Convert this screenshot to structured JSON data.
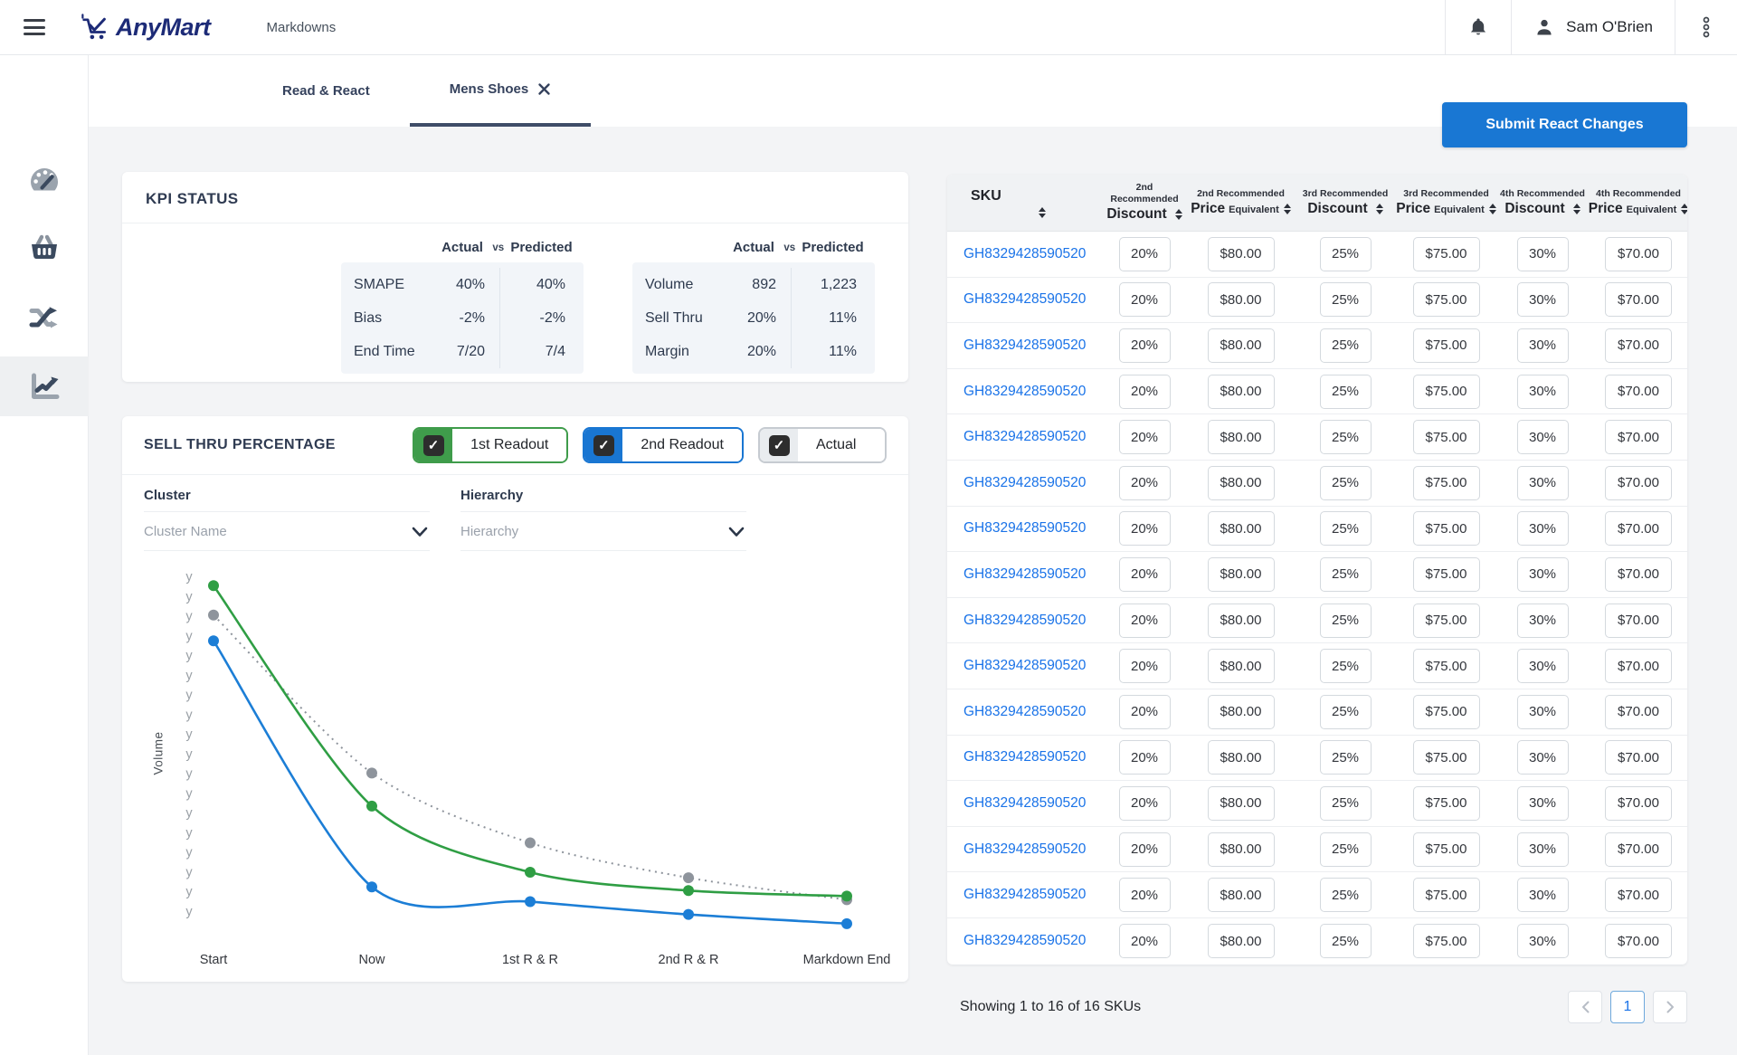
{
  "topbar": {
    "brand": "AnyMart",
    "page_title": "Markdowns",
    "user_name": "Sam O'Brien"
  },
  "tabs": {
    "read_react": "Read & React",
    "mens_shoes": "Mens Shoes"
  },
  "actions": {
    "submit_label": "Submit React Changes"
  },
  "sidebar": {
    "items": [
      {
        "icon": "gauge-icon",
        "active": false
      },
      {
        "icon": "basket-icon",
        "active": false
      },
      {
        "icon": "shuffle-icon",
        "active": false
      },
      {
        "icon": "chart-line-icon",
        "active": true
      }
    ]
  },
  "kpi": {
    "title": "KPI STATUS",
    "col_headers": {
      "actual": "Actual",
      "vs": "vs",
      "predicted": "Predicted"
    },
    "tables": [
      {
        "rows": [
          {
            "label": "SMAPE",
            "actual": "40%",
            "predicted": "40%"
          },
          {
            "label": "Bias",
            "actual": "-2%",
            "predicted": "-2%"
          },
          {
            "label": "End Time",
            "actual": "7/20",
            "predicted": "7/4"
          }
        ]
      },
      {
        "rows": [
          {
            "label": "Volume",
            "actual": "892",
            "predicted": "1,223"
          },
          {
            "label": "Sell Thru",
            "actual": "20%",
            "predicted": "11%"
          },
          {
            "label": "Margin",
            "actual": "20%",
            "predicted": "11%"
          }
        ]
      }
    ]
  },
  "sell_thru": {
    "title": "SELL THRU PERCENTAGE",
    "toggles": [
      {
        "label": "1st Readout",
        "checked": true,
        "color": "#3f9c4b"
      },
      {
        "label": "2nd Readout",
        "checked": true,
        "color": "#1976d2"
      },
      {
        "label": "Actual",
        "checked": true,
        "color": "#c6cbd1"
      }
    ],
    "filters": [
      {
        "label": "Cluster",
        "placeholder": "Cluster Name"
      },
      {
        "label": "Hierarchy",
        "placeholder": "Hierarchy"
      }
    ]
  },
  "chart_data": {
    "type": "line",
    "title": "SELL THRU PERCENTAGE",
    "x_categories": [
      "Start",
      "Now",
      "1st R & R",
      "2nd R & R",
      "Markdown End"
    ],
    "ylabel": "Volume",
    "y_tick_labels": [
      "y",
      "y",
      "y",
      "y",
      "y",
      "y",
      "y",
      "y",
      "y",
      "y",
      "y",
      "y",
      "y",
      "y",
      "y",
      "y",
      "y",
      "y"
    ],
    "ylim": [
      0,
      100
    ],
    "grid": false,
    "legend": "checkbox-toggles-above-chart",
    "series": [
      {
        "name": "1st Readout",
        "color": "#2f9e44",
        "style": "solid",
        "values": [
          95,
          35,
          17,
          12,
          10.5
        ]
      },
      {
        "name": "2nd Readout",
        "color": "#1c7ed6",
        "style": "solid",
        "values": [
          80,
          13,
          9,
          5.5,
          3
        ]
      },
      {
        "name": "Actual",
        "color": "#8e949c",
        "style": "dotted",
        "values": [
          87,
          44,
          25,
          15.5,
          9.5
        ]
      }
    ]
  },
  "sku_table": {
    "sku_header": "SKU",
    "columns": [
      {
        "top": "2nd Recommended",
        "main": "Discount",
        "suffix": ""
      },
      {
        "top": "2nd Recommended",
        "main": "Price",
        "suffix": "Equivalent"
      },
      {
        "top": "3rd Recommended",
        "main": "Discount",
        "suffix": ""
      },
      {
        "top": "3rd Recommended",
        "main": "Price",
        "suffix": "Equivalent"
      },
      {
        "top": "4th Recommended",
        "main": "Discount",
        "suffix": ""
      },
      {
        "top": "4th Recommended",
        "main": "Price",
        "suffix": "Equivalent"
      }
    ],
    "rows": [
      {
        "sku": "GH8329428590520",
        "values": [
          "20%",
          "$80.00",
          "25%",
          "$75.00",
          "30%",
          "$70.00"
        ]
      },
      {
        "sku": "GH8329428590520",
        "values": [
          "20%",
          "$80.00",
          "25%",
          "$75.00",
          "30%",
          "$70.00"
        ]
      },
      {
        "sku": "GH8329428590520",
        "values": [
          "20%",
          "$80.00",
          "25%",
          "$75.00",
          "30%",
          "$70.00"
        ]
      },
      {
        "sku": "GH8329428590520",
        "values": [
          "20%",
          "$80.00",
          "25%",
          "$75.00",
          "30%",
          "$70.00"
        ]
      },
      {
        "sku": "GH8329428590520",
        "values": [
          "20%",
          "$80.00",
          "25%",
          "$75.00",
          "30%",
          "$70.00"
        ]
      },
      {
        "sku": "GH8329428590520",
        "values": [
          "20%",
          "$80.00",
          "25%",
          "$75.00",
          "30%",
          "$70.00"
        ]
      },
      {
        "sku": "GH8329428590520",
        "values": [
          "20%",
          "$80.00",
          "25%",
          "$75.00",
          "30%",
          "$70.00"
        ]
      },
      {
        "sku": "GH8329428590520",
        "values": [
          "20%",
          "$80.00",
          "25%",
          "$75.00",
          "30%",
          "$70.00"
        ]
      },
      {
        "sku": "GH8329428590520",
        "values": [
          "20%",
          "$80.00",
          "25%",
          "$75.00",
          "30%",
          "$70.00"
        ]
      },
      {
        "sku": "GH8329428590520",
        "values": [
          "20%",
          "$80.00",
          "25%",
          "$75.00",
          "30%",
          "$70.00"
        ]
      },
      {
        "sku": "GH8329428590520",
        "values": [
          "20%",
          "$80.00",
          "25%",
          "$75.00",
          "30%",
          "$70.00"
        ]
      },
      {
        "sku": "GH8329428590520",
        "values": [
          "20%",
          "$80.00",
          "25%",
          "$75.00",
          "30%",
          "$70.00"
        ]
      },
      {
        "sku": "GH8329428590520",
        "values": [
          "20%",
          "$80.00",
          "25%",
          "$75.00",
          "30%",
          "$70.00"
        ]
      },
      {
        "sku": "GH8329428590520",
        "values": [
          "20%",
          "$80.00",
          "25%",
          "$75.00",
          "30%",
          "$70.00"
        ]
      },
      {
        "sku": "GH8329428590520",
        "values": [
          "20%",
          "$80.00",
          "25%",
          "$75.00",
          "30%",
          "$70.00"
        ]
      },
      {
        "sku": "GH8329428590520",
        "values": [
          "20%",
          "$80.00",
          "25%",
          "$75.00",
          "30%",
          "$70.00"
        ]
      }
    ],
    "footer": "Showing 1 to 16 of 16 SKUs",
    "pagination": {
      "prev": "‹",
      "page": "1",
      "next": "›"
    }
  }
}
